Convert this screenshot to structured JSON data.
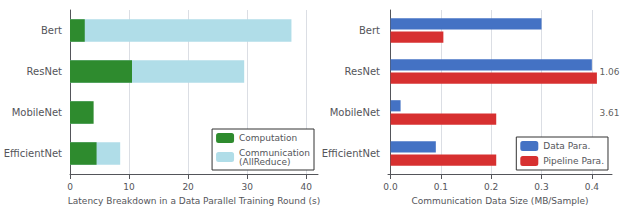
{
  "chart_data": [
    {
      "type": "bar",
      "orientation": "horizontal",
      "stacked": false,
      "categories": [
        "EfficientNet",
        "MobileNet",
        "ResNet",
        "Bert"
      ],
      "series": [
        {
          "name": "Computation",
          "color": "#2e8b2e",
          "values": [
            4.5,
            4.0,
            10.5,
            2.5
          ]
        },
        {
          "name": "Communication\n(AllReduce)",
          "color": "#b0dde8",
          "values": [
            8.5,
            3.5,
            29.5,
            37.5
          ]
        }
      ],
      "xlabel": "Latency Breakdown in a Data Parallel Training Round (s)",
      "xlim": [
        0,
        42
      ],
      "xticks": [
        0,
        10,
        20,
        30,
        40
      ],
      "grid": true,
      "legend": "lower right"
    },
    {
      "type": "bar",
      "orientation": "horizontal",
      "stacked": false,
      "categories": [
        "EfficientNet",
        "MobileNet",
        "ResNet",
        "Bert"
      ],
      "series": [
        {
          "name": "Data Para.",
          "color": "#4472c4",
          "values": [
            0.09,
            0.02,
            0.4,
            0.3
          ]
        },
        {
          "name": "Pipeline Para.",
          "color": "#d73030",
          "values": [
            0.21,
            0.21,
            0.41,
            0.105
          ]
        }
      ],
      "xlabel": "Communication Data Size (MB/Sample)",
      "xlim": [
        -0.005,
        0.44
      ],
      "xticks": [
        {
          "value": 0.0,
          "label": "0.0"
        },
        0.1,
        0.2,
        0.3,
        0.4
      ],
      "annotations": [
        {
          "text": "3.61",
          "x": 0.415,
          "y": "MobileNet"
        },
        {
          "text": "1.06",
          "x": 0.415,
          "y": "ResNet"
        }
      ],
      "grid": true,
      "legend": "lower right"
    }
  ]
}
